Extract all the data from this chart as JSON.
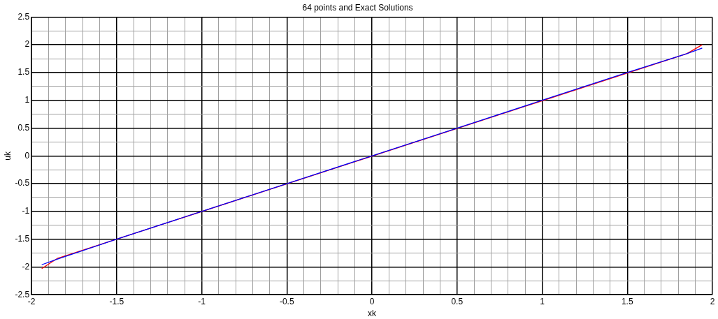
{
  "chart_data": {
    "type": "line",
    "title": "64 points and Exact Solutions",
    "xlabel": "xk",
    "ylabel": "uk",
    "xlim": [
      -2,
      2
    ],
    "ylim": [
      -2.5,
      2.5
    ],
    "xticks": [
      -2,
      {
        "value": -1.9,
        "label": null
      },
      {
        "value": -1.8,
        "label": null
      },
      {
        "value": -1.7,
        "label": null
      },
      {
        "value": -1.6,
        "label": null
      },
      -1.5,
      {
        "value": -1.4,
        "label": null
      },
      {
        "value": -1.3,
        "label": null
      },
      {
        "value": -1.2,
        "label": null
      },
      {
        "value": -1.1,
        "label": null
      },
      -1,
      {
        "value": -0.9,
        "label": null
      },
      {
        "value": -0.8,
        "label": null
      },
      {
        "value": -0.7,
        "label": null
      },
      {
        "value": -0.6,
        "label": null
      },
      -0.5,
      {
        "value": -0.4,
        "label": null
      },
      {
        "value": -0.3,
        "label": null
      },
      {
        "value": -0.2,
        "label": null
      },
      {
        "value": -0.1,
        "label": null
      },
      0,
      {
        "value": 0.1,
        "label": null
      },
      {
        "value": 0.2,
        "label": null
      },
      {
        "value": 0.3,
        "label": null
      },
      {
        "value": 0.4,
        "label": null
      },
      0.5,
      {
        "value": 0.6,
        "label": null
      },
      {
        "value": 0.7,
        "label": null
      },
      {
        "value": 0.8,
        "label": null
      },
      {
        "value": 0.9,
        "label": null
      },
      1,
      {
        "value": 1.1,
        "label": null
      },
      {
        "value": 1.2,
        "label": null
      },
      {
        "value": 1.3,
        "label": null
      },
      {
        "value": 1.4,
        "label": null
      },
      1.5,
      {
        "value": 1.6,
        "label": null
      },
      {
        "value": 1.7,
        "label": null
      },
      {
        "value": 1.8,
        "label": null
      },
      {
        "value": 1.9,
        "label": null
      },
      2
    ],
    "yticks": [
      -2.5,
      {
        "value": -2.25,
        "label": null
      },
      -2,
      {
        "value": -1.75,
        "label": null
      },
      -1.5,
      {
        "value": -1.25,
        "label": null
      },
      -1,
      {
        "value": -0.75,
        "label": null
      },
      -0.5,
      {
        "value": -0.25,
        "label": null
      },
      0,
      {
        "value": 0.25,
        "label": null
      },
      0.5,
      {
        "value": 0.75,
        "label": null
      },
      1,
      {
        "value": 1.25,
        "label": null
      },
      1.5,
      {
        "value": 1.75,
        "label": null
      },
      2,
      {
        "value": 2.25,
        "label": null
      },
      2.5
    ],
    "grid": true,
    "legend": false,
    "marker": "none",
    "line_style": "solid",
    "series": [
      {
        "color": "#ff0000",
        "x": [
          -1.94,
          -1.85,
          1.85,
          1.94
        ],
        "values": [
          -2.03,
          -1.85,
          1.84,
          2.0
        ]
      },
      {
        "color": "#0000ff",
        "x": [
          -1.94,
          -1.85,
          -1.5,
          -1,
          -0.5,
          0,
          0.5,
          1,
          1.5,
          1.85,
          1.94
        ],
        "values": [
          -1.96,
          -1.86,
          -1.5,
          -1,
          -0.5,
          0,
          0.5,
          1,
          1.5,
          1.84,
          1.94
        ]
      }
    ]
  }
}
